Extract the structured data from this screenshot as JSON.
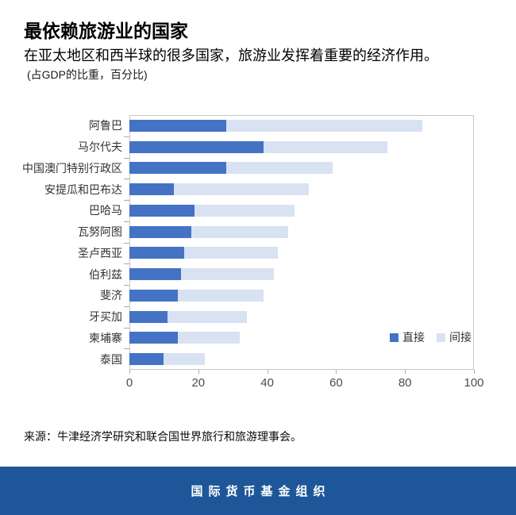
{
  "header": {
    "title": "最依赖旅游业的国家",
    "subtitle": "在亚太地区和西半球的很多国家，旅游业发挥着重要的经济作用。",
    "unit_note": "(占GDP的比重，百分比)"
  },
  "chart_data": {
    "type": "bar",
    "orientation": "horizontal",
    "stacked": true,
    "title": "最依赖旅游业的国家",
    "xlabel": "占GDP的比重，百分比",
    "ylabel": "",
    "xlim": [
      0,
      100
    ],
    "x_ticks": [
      0,
      20,
      40,
      60,
      80,
      100
    ],
    "grid": false,
    "legend_position": "inside-right",
    "categories": [
      "阿鲁巴",
      "马尔代夫",
      "中国澳门特别行政区",
      "安提瓜和巴布达",
      "巴哈马",
      "瓦努阿图",
      "圣卢西亚",
      "伯利兹",
      "斐济",
      "牙买加",
      "柬埔寨",
      "泰国"
    ],
    "series": [
      {
        "name": "直接",
        "color": "#4472C4",
        "values": [
          28,
          39,
          28,
          13,
          19,
          18,
          16,
          15,
          14,
          11,
          14,
          10
        ]
      },
      {
        "name": "间接",
        "color": "#D9E2F3",
        "values": [
          57,
          36,
          31,
          39,
          29,
          28,
          27,
          27,
          25,
          23,
          18,
          12
        ]
      }
    ],
    "totals": [
      85,
      75,
      59,
      52,
      48,
      46,
      43,
      42,
      39,
      34,
      32,
      22
    ]
  },
  "source": "来源：牛津经济学研究和联合国世界旅行和旅游理事会。",
  "footer": {
    "label": "国际货币基金组织",
    "background": "#1E5799"
  },
  "colors": {
    "direct_bar": "#4472C4",
    "indirect_bar": "#D9E2F3",
    "plot_border": "#C7C7C7",
    "footer_background": "#1E5799"
  }
}
